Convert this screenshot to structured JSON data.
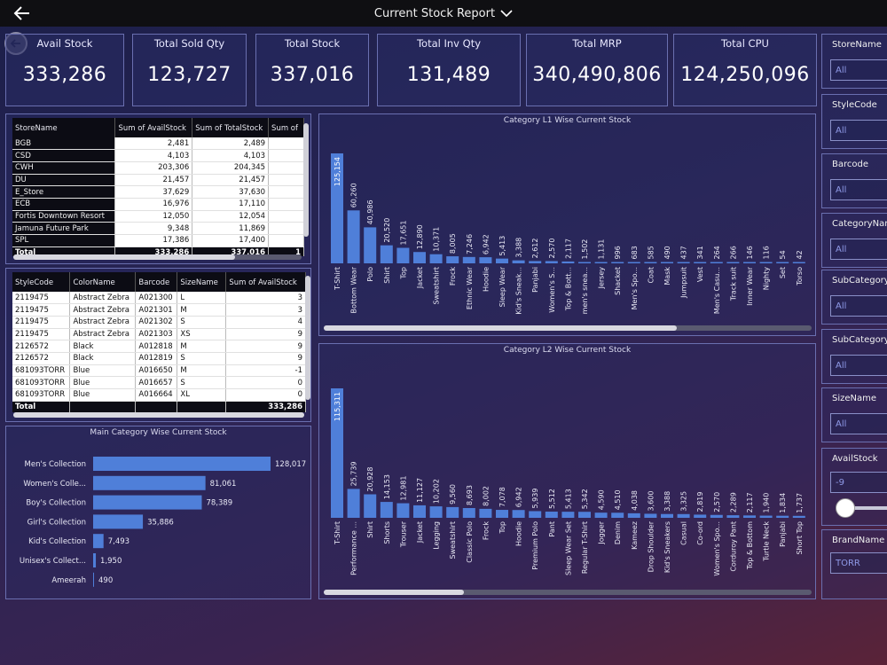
{
  "header": {
    "title": "Current Stock Report"
  },
  "kpis": [
    {
      "label": "Avail Stock",
      "value": "333,286"
    },
    {
      "label": "Total Sold Qty",
      "value": "123,727"
    },
    {
      "label": "Total Stock",
      "value": "337,016"
    },
    {
      "label": "Total Inv Qty",
      "value": "131,489"
    },
    {
      "label": "Total MRP",
      "value": "340,490,806"
    },
    {
      "label": "Total CPU",
      "value": "124,250,096"
    }
  ],
  "store_table": {
    "headers": [
      "StoreName",
      "Sum of AvailStock",
      "Sum of TotalStock",
      "Sum of"
    ],
    "rows": [
      [
        "BGB",
        "2,481",
        "2,489"
      ],
      [
        "CSD",
        "4,103",
        "4,103"
      ],
      [
        "CWH",
        "203,306",
        "204,345"
      ],
      [
        "DU",
        "21,457",
        "21,457"
      ],
      [
        "E_Store",
        "37,629",
        "37,630"
      ],
      [
        "ECB",
        "16,976",
        "17,110"
      ],
      [
        "Fortis Downtown Resort",
        "12,050",
        "12,054"
      ],
      [
        "Jamuna Future Park",
        "9,348",
        "11,869"
      ],
      [
        "SPL",
        "17,386",
        "17,400"
      ]
    ],
    "total": [
      "Total",
      "333,286",
      "337,016",
      "1"
    ]
  },
  "style_table": {
    "headers": [
      "StyleCode",
      "ColorName",
      "Barcode",
      "SizeName",
      "Sum of AvailStock"
    ],
    "rows": [
      [
        "2119475",
        "Abstract Zebra",
        "A021300",
        "L",
        "3"
      ],
      [
        "2119475",
        "Abstract Zebra",
        "A021301",
        "M",
        "3"
      ],
      [
        "2119475",
        "Abstract Zebra",
        "A021302",
        "S",
        "4"
      ],
      [
        "2119475",
        "Abstract Zebra",
        "A021303",
        "XS",
        "9"
      ],
      [
        "2126572",
        "Black",
        "A012818",
        "M",
        "9"
      ],
      [
        "2126572",
        "Black",
        "A012819",
        "S",
        "9"
      ],
      [
        "681093TORR",
        "Blue",
        "A016650",
        "M",
        "-1"
      ],
      [
        "681093TORR",
        "Blue",
        "A016657",
        "S",
        "0"
      ],
      [
        "681093TORR",
        "Blue",
        "A016664",
        "XL",
        "0"
      ]
    ],
    "total": [
      "Total",
      "",
      "",
      "",
      "333,286"
    ]
  },
  "slicers": [
    {
      "label": "StoreName",
      "value": "All"
    },
    {
      "label": "StyleCode",
      "value": "All"
    },
    {
      "label": "Barcode",
      "value": "All"
    },
    {
      "label": "CategoryName",
      "value": "All"
    },
    {
      "label": "SubCategory",
      "value": "All"
    },
    {
      "label": "SubCategory",
      "value": "All"
    },
    {
      "label": "SizeName",
      "value": "All"
    },
    {
      "label": "AvailStock",
      "value": "-9"
    },
    {
      "label": "BrandName",
      "value": "TORR"
    }
  ],
  "colors": {
    "bar": "#4f7fd9",
    "accent_border": "#6a6fb0",
    "slicer_text": "#8f9ae8"
  },
  "chart_data": [
    {
      "type": "bar",
      "orientation": "vertical",
      "title": "Category L1 Wise Current Stock",
      "categories": [
        "T-Shirt",
        "Bottom Wear",
        "Polo",
        "Shirt",
        "Top",
        "Jacket",
        "Sweatshirt",
        "Frock",
        "Ethnic Wear",
        "Hoodie",
        "Sleep Wear",
        "Kid's Sneak...",
        "Panjabi",
        "Women's S...",
        "Top & Bott...",
        "men's snea...",
        "Jersey",
        "Shacket",
        "Men's Spo...",
        "Coat",
        "Mask",
        "Jumpsuit",
        "Vest",
        "Men's Casu...",
        "Track suit",
        "Inner Wear",
        "Nighty",
        "Set",
        "Torso"
      ],
      "values": [
        125154,
        60260,
        40986,
        20520,
        17651,
        12890,
        10371,
        8005,
        7246,
        6942,
        5413,
        3388,
        2612,
        2570,
        2117,
        1502,
        1131,
        996,
        683,
        585,
        490,
        437,
        341,
        264,
        266,
        146,
        116,
        54,
        42
      ],
      "data_labels": [
        "125,154",
        "60,260",
        "40,986",
        "20,520",
        "17,651",
        "12,890",
        "10,371",
        "8,005",
        "7,246",
        "6,942",
        "5,413",
        "3,388",
        "2,612",
        "2,570",
        "2,117",
        "1,502",
        "1,131",
        "996",
        "683",
        "585",
        "490",
        "437",
        "341",
        "264",
        "266",
        "146",
        "116",
        "54",
        "42"
      ]
    },
    {
      "type": "bar",
      "orientation": "vertical",
      "title": "Category L2 Wise Current Stock",
      "categories": [
        "T-Shirt",
        "Performance ...",
        "Shirt",
        "Shorts",
        "Trouser",
        "Jacket",
        "Legging",
        "Sweatshirt",
        "Classic Polo",
        "Frock",
        "Top",
        "Hoodie",
        "Premium Polo",
        "Pant",
        "Sleep Wear Set",
        "Regular T-Shirt",
        "Jogger",
        "Denim",
        "Kameez",
        "Drop Shoulder",
        "Kid's Sneakers",
        "Casual",
        "Co-ord",
        "Women's Spo...",
        "Corduroy Pant",
        "Top & Bottom",
        "Turtle Neck",
        "Panjabi",
        "Short Top"
      ],
      "values": [
        115311,
        25739,
        20928,
        14153,
        12981,
        11127,
        10202,
        9560,
        8693,
        8002,
        7078,
        6942,
        5939,
        5512,
        5413,
        5342,
        4590,
        4510,
        4038,
        3600,
        3388,
        3325,
        2819,
        2570,
        2289,
        2117,
        1940,
        1834,
        1737
      ],
      "data_labels": [
        "115,311",
        "25,739",
        "20,928",
        "14,153",
        "12,981",
        "11,127",
        "10,202",
        "9,560",
        "8,693",
        "8,002",
        "7,078",
        "6,942",
        "5,939",
        "5,512",
        "5,413",
        "5,342",
        "4,590",
        "4,510",
        "4,038",
        "3,600",
        "3,388",
        "3,325",
        "2,819",
        "2,570",
        "2,289",
        "2,117",
        "1,940",
        "1,834",
        "1,737"
      ]
    },
    {
      "type": "bar",
      "orientation": "horizontal",
      "title": "Main Category Wise Current Stock",
      "categories": [
        "Men's Collection",
        "Women's Colle...",
        "Boy's Collection",
        "Girl's Collection",
        "Kid's Collection",
        "Unisex's Collect...",
        "Ameerah"
      ],
      "values": [
        128017,
        81061,
        78389,
        35886,
        7493,
        1950,
        490
      ],
      "data_labels": [
        "128,017",
        "81,061",
        "78,389",
        "35,886",
        "7,493",
        "1,950",
        "490"
      ]
    }
  ]
}
